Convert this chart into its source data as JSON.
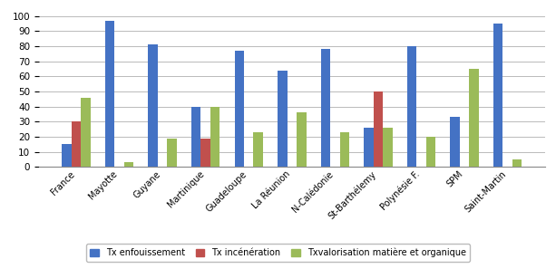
{
  "categories": [
    "France",
    "Mayotte",
    "Guyane",
    "Martinique",
    "Guadeloupe",
    "La Réunion",
    "N-Calédonie",
    "St-Barthélemy",
    "Polynésie F.",
    "SPM",
    "Saint-Martin"
  ],
  "series": {
    "Tx enfouissement": [
      15,
      97,
      81,
      40,
      77,
      64,
      78,
      26,
      80,
      33,
      95
    ],
    "Tx incénération": [
      30,
      0,
      0,
      19,
      0,
      0,
      0,
      50,
      0,
      0,
      0
    ],
    "Txvalorisation matière et organique": [
      46,
      3,
      19,
      40,
      23,
      36,
      23,
      26,
      20,
      65,
      5
    ]
  },
  "colors": {
    "Tx enfouissement": "#4472C4",
    "Tx incénération": "#C0504D",
    "Txvalorisation matière et organique": "#9BBB59"
  },
  "ylim": [
    0,
    100
  ],
  "yticks": [
    0,
    10,
    20,
    30,
    40,
    50,
    60,
    70,
    80,
    90,
    100
  ],
  "background_color": "#FFFFFF",
  "grid_color": "#B0B0B0",
  "bar_width": 0.22,
  "figsize": [
    6.13,
    2.97
  ],
  "dpi": 100
}
